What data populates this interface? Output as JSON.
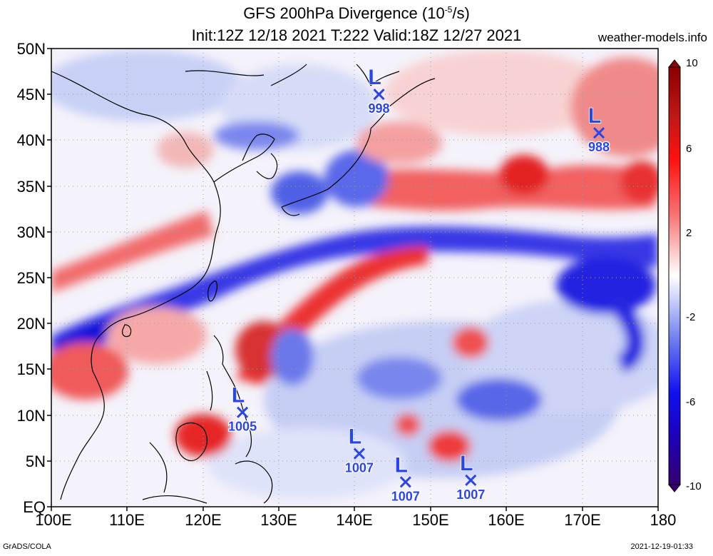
{
  "title": {
    "prefix": "GFS 200hPa Divergence (10",
    "exp": "-5",
    "suffix": "/s)",
    "line2": "Init:12Z 12/18 2021 T:222 Valid:18Z 12/27 2021"
  },
  "site": "weather-models.info",
  "credit": "GrADS/COLA",
  "timestamp": "2021-12-19-01:33",
  "lat_ticks": [
    "50N",
    "45N",
    "40N",
    "35N",
    "30N",
    "25N",
    "20N",
    "15N",
    "10N",
    "5N",
    "EQ"
  ],
  "lon_ticks": [
    "100E",
    "110E",
    "120E",
    "130E",
    "140E",
    "150E",
    "160E",
    "170E",
    "180"
  ],
  "colorbar": {
    "ticks": [
      "10",
      "6",
      "2",
      "-2",
      "-6",
      "-10"
    ],
    "colors": {
      "strong_pos": "#a01818",
      "pos": "#ff2020",
      "weak_pos": "#f7a8a8",
      "neutral": "#ffffff",
      "weak_neg": "#a8b4f0",
      "neg": "#1010e0",
      "strong_neg": "#300090"
    }
  },
  "lows": [
    {
      "label": "L",
      "value": "998",
      "lon": 143.2,
      "lat": 45.0
    },
    {
      "label": "L",
      "value": "988",
      "lon": 172.2,
      "lat": 40.8
    },
    {
      "label": "L",
      "value": "1005",
      "lon": 125.2,
      "lat": 10.3
    },
    {
      "label": "L",
      "value": "1007",
      "lon": 140.6,
      "lat": 5.8
    },
    {
      "label": "L",
      "value": "1007",
      "lon": 146.7,
      "lat": 2.7
    },
    {
      "label": "L",
      "value": "1007",
      "lon": 155.3,
      "lat": 2.9
    }
  ],
  "legend_low_color": "#2b45e6"
}
